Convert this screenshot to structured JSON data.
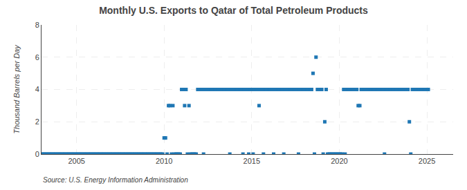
{
  "chart_data": {
    "type": "scatter",
    "title": "Monthly U.S. Exports to Qatar of Total Petroleum Products",
    "ylabel": "Thousand Barrels per Day",
    "annotations": [
      "Source: U.S. Energy Information Administration"
    ],
    "marker": "square",
    "grid": true,
    "xlim": [
      2003.0,
      2026.5
    ],
    "xticks": [
      2005,
      2010,
      2015,
      2020,
      2025
    ],
    "ylim": [
      0,
      8
    ],
    "yticks": [
      0,
      2,
      4,
      6,
      8
    ],
    "x": [
      2003.0,
      2003.08,
      2003.17,
      2003.25,
      2003.33,
      2003.42,
      2003.5,
      2003.58,
      2003.67,
      2003.75,
      2003.83,
      2003.92,
      2004.0,
      2004.08,
      2004.17,
      2004.25,
      2004.33,
      2004.42,
      2004.5,
      2004.58,
      2004.67,
      2004.75,
      2004.83,
      2004.92,
      2005.0,
      2005.08,
      2005.17,
      2005.25,
      2005.33,
      2005.42,
      2005.5,
      2005.58,
      2005.67,
      2005.75,
      2005.83,
      2005.92,
      2006.0,
      2006.08,
      2006.17,
      2006.25,
      2006.33,
      2006.42,
      2006.5,
      2006.58,
      2006.67,
      2006.75,
      2006.83,
      2006.92,
      2007.0,
      2007.08,
      2007.17,
      2007.25,
      2007.33,
      2007.42,
      2007.5,
      2007.58,
      2007.67,
      2007.75,
      2007.83,
      2007.92,
      2008.0,
      2008.08,
      2008.17,
      2008.25,
      2008.33,
      2008.42,
      2008.5,
      2008.58,
      2008.67,
      2008.75,
      2008.83,
      2008.92,
      2009.0,
      2009.08,
      2009.17,
      2009.25,
      2009.33,
      2009.42,
      2009.5,
      2009.58,
      2009.67,
      2009.75,
      2009.83,
      2009.92,
      2010.0,
      2010.08,
      2010.17,
      2010.25,
      2010.33,
      2010.42,
      2010.5,
      2010.58,
      2010.67,
      2010.75,
      2010.83,
      2010.92,
      2011.0,
      2011.08,
      2011.17,
      2011.25,
      2011.33,
      2011.42,
      2011.5,
      2011.58,
      2011.67,
      2011.75,
      2011.83,
      2011.92,
      2012.0,
      2012.08,
      2012.17,
      2012.25,
      2012.33,
      2012.42,
      2012.5,
      2012.58,
      2012.67,
      2012.75,
      2012.83,
      2012.92,
      2013.0,
      2013.08,
      2013.17,
      2013.25,
      2013.33,
      2013.42,
      2013.5,
      2013.58,
      2013.67,
      2013.75,
      2013.83,
      2013.92,
      2014.0,
      2014.08,
      2014.17,
      2014.25,
      2014.33,
      2014.42,
      2014.5,
      2014.58,
      2014.67,
      2014.75,
      2014.83,
      2014.92,
      2015.0,
      2015.08,
      2015.17,
      2015.25,
      2015.33,
      2015.42,
      2015.5,
      2015.58,
      2015.67,
      2015.75,
      2015.83,
      2015.92,
      2016.0,
      2016.08,
      2016.17,
      2016.25,
      2016.33,
      2016.42,
      2016.5,
      2016.58,
      2016.67,
      2016.75,
      2016.83,
      2016.92,
      2017.0,
      2017.08,
      2017.17,
      2017.25,
      2017.33,
      2017.42,
      2017.5,
      2017.58,
      2017.67,
      2017.75,
      2017.83,
      2017.92,
      2018.0,
      2018.08,
      2018.17,
      2018.25,
      2018.33,
      2018.42,
      2018.5,
      2018.58,
      2018.67,
      2018.75,
      2018.83,
      2018.92,
      2019.0,
      2019.08,
      2019.17,
      2019.25,
      2019.33,
      2019.42,
      2019.5,
      2019.58,
      2019.67,
      2019.75,
      2019.83,
      2019.92,
      2020.0,
      2020.08,
      2020.17,
      2020.25,
      2020.33,
      2020.42,
      2020.5,
      2020.58,
      2020.67,
      2020.75,
      2020.83,
      2020.92,
      2021.0,
      2021.08,
      2021.17,
      2021.25,
      2021.33,
      2021.42,
      2021.5,
      2021.58,
      2021.67,
      2021.75,
      2021.83,
      2021.92,
      2022.0,
      2022.08,
      2022.17,
      2022.25,
      2022.33,
      2022.42,
      2022.5,
      2022.58,
      2022.67,
      2022.75,
      2022.83,
      2022.92,
      2023.0,
      2023.08,
      2023.17,
      2023.25,
      2023.33,
      2023.42,
      2023.5,
      2023.58,
      2023.67,
      2023.75,
      2023.83,
      2023.92,
      2024.0,
      2024.08,
      2024.17,
      2024.25,
      2024.33,
      2024.42,
      2024.5,
      2024.58,
      2024.67,
      2024.75,
      2024.83,
      2024.92,
      2025.0,
      2025.08
    ],
    "values": [
      0,
      0,
      0,
      0,
      0,
      0,
      0,
      0,
      0,
      0,
      0,
      0,
      0,
      0,
      0,
      0,
      0,
      0,
      0,
      0,
      0,
      0,
      0,
      0,
      0,
      0,
      0,
      0,
      0,
      0,
      0,
      0,
      0,
      0,
      0,
      0,
      0,
      0,
      0,
      0,
      0,
      0,
      0,
      0,
      0,
      0,
      0,
      0,
      0,
      0,
      0,
      0,
      0,
      0,
      0,
      0,
      0,
      0,
      0,
      0,
      0,
      0,
      0,
      0,
      0,
      0,
      0,
      0,
      0,
      0,
      0,
      0,
      0,
      0,
      0,
      0,
      0,
      0,
      0,
      0,
      0,
      0,
      0,
      0,
      1,
      1,
      0,
      3,
      3,
      0,
      3,
      0,
      0,
      0,
      0,
      0,
      4,
      4,
      3,
      4,
      0,
      3,
      0,
      0,
      0,
      0,
      0,
      4,
      4,
      4,
      4,
      0,
      4,
      4,
      4,
      4,
      4,
      4,
      4,
      4,
      4,
      4,
      4,
      4,
      4,
      4,
      4,
      4,
      4,
      0,
      4,
      4,
      4,
      4,
      4,
      4,
      4,
      4,
      0,
      4,
      4,
      4,
      0,
      4,
      4,
      0,
      4,
      4,
      4,
      3,
      4,
      4,
      0,
      4,
      4,
      4,
      4,
      4,
      4,
      0,
      4,
      4,
      4,
      4,
      4,
      4,
      0,
      4,
      4,
      4,
      4,
      4,
      4,
      4,
      4,
      4,
      0,
      4,
      4,
      4,
      4,
      4,
      4,
      4,
      4,
      4,
      5,
      0,
      6,
      4,
      4,
      4,
      4,
      0,
      2,
      4,
      0,
      0,
      0,
      0,
      0,
      0,
      0,
      0,
      0,
      0,
      0,
      4,
      0,
      4,
      4,
      4,
      4,
      4,
      4,
      4,
      4,
      3,
      3,
      4,
      4,
      4,
      4,
      4,
      4,
      4,
      4,
      4,
      4,
      4,
      4,
      4,
      4,
      4,
      4,
      0,
      4,
      4,
      4,
      4,
      4,
      4,
      4,
      4,
      4,
      4,
      4,
      4,
      4,
      4,
      4,
      4,
      2,
      0,
      4,
      4,
      4,
      4,
      4,
      4,
      4,
      4,
      4,
      4,
      4,
      4
    ]
  }
}
